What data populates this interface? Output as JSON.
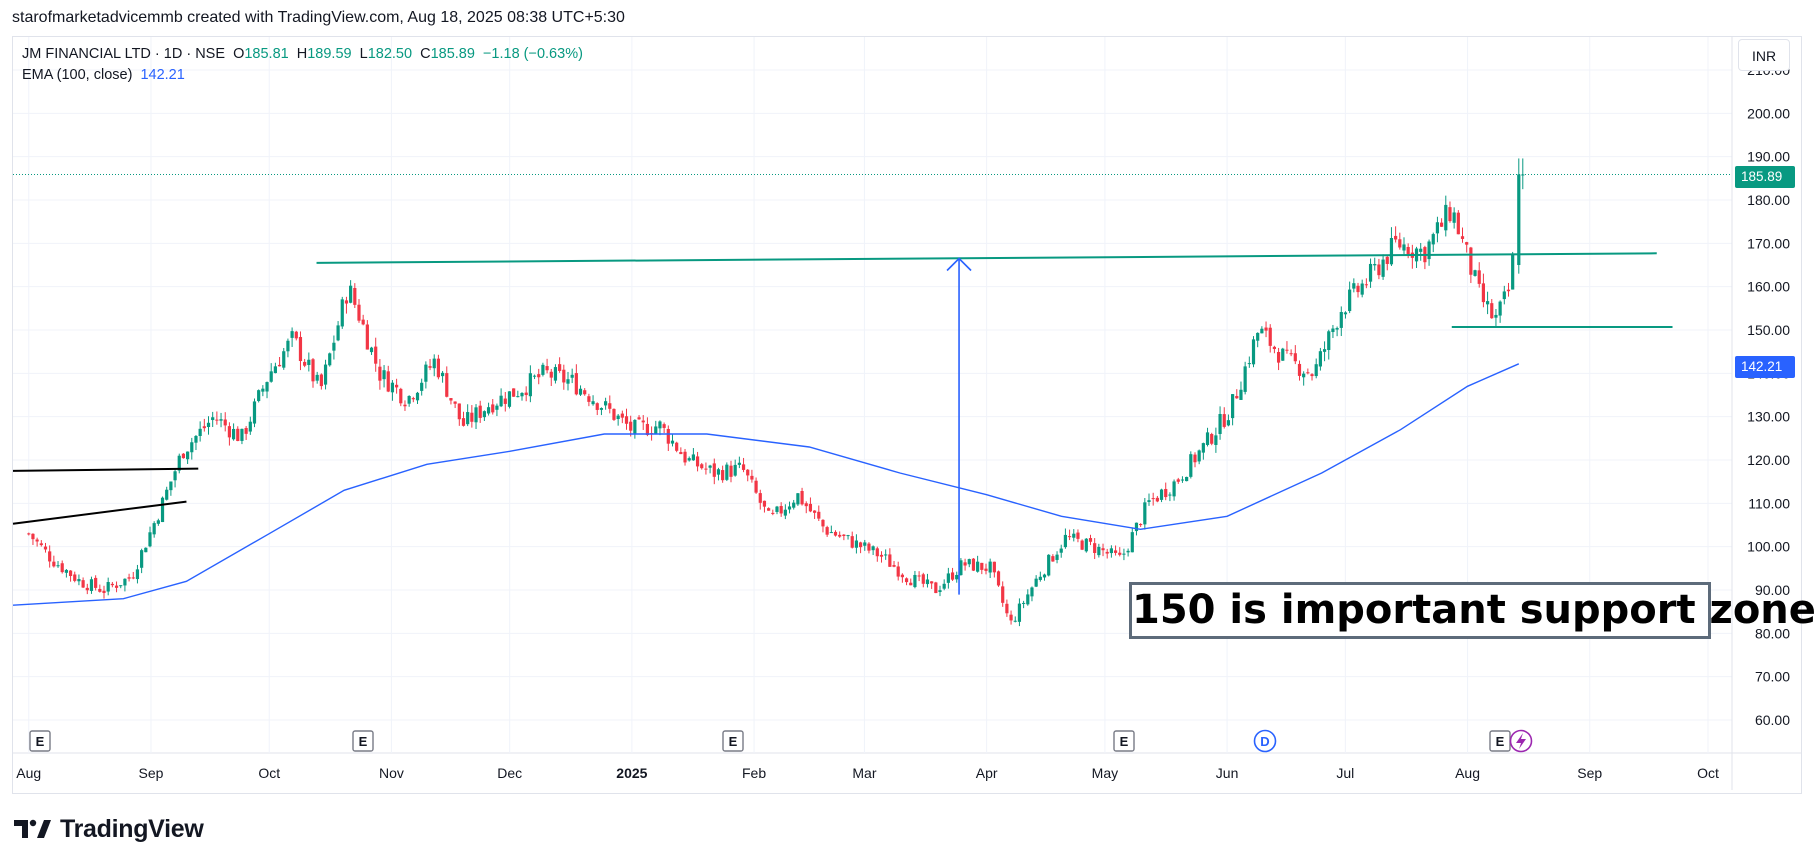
{
  "header": {
    "attribution": "starofmarketadvicemmb created with TradingView.com, Aug 18, 2025 08:38 UTC+5:30"
  },
  "legend": {
    "symbol": "JM FINANCIAL LTD · 1D · NSE",
    "o_label": "O",
    "o_value": "185.81",
    "h_label": "H",
    "h_value": "189.59",
    "l_label": "L",
    "l_value": "182.50",
    "c_label": "C",
    "c_value": "185.89",
    "change": "−1.18 (−0.63%)",
    "ema_label": "EMA (100, close)",
    "ema_value": "142.21"
  },
  "currency_button": "INR",
  "annotation_text": "150 is important support zone",
  "brand": {
    "name": "TradingView"
  },
  "price_tags": {
    "last_price": "185.89",
    "ema_price": "142.21"
  },
  "colors": {
    "up": "#089981",
    "down": "#f23645",
    "ema": "#2962ff",
    "trendline": "#089981",
    "drawing": "#000000"
  },
  "chart_data": {
    "type": "candlestick",
    "title": "JM FINANCIAL LTD · 1D · NSE",
    "y_axis_ticks": [
      "60.00",
      "70.00",
      "80.00",
      "90.00",
      "100.00",
      "110.00",
      "120.00",
      "130.00",
      "140.00",
      "150.00",
      "160.00",
      "170.00",
      "180.00",
      "190.00",
      "200.00",
      "210.00"
    ],
    "ylim": [
      55,
      213
    ],
    "x_axis_ticks": [
      "Aug",
      "Sep",
      "Oct",
      "Nov",
      "Dec",
      "2025",
      "Feb",
      "Mar",
      "Apr",
      "May",
      "Jun",
      "Jul",
      "Aug",
      "Sep",
      "Oct"
    ],
    "grid": true,
    "series": [
      {
        "name": "JM FINANCIAL LTD",
        "kind": "ohlc",
        "approx_close_path": [
          [
            "2024-08-01",
            103
          ],
          [
            "2024-08-07",
            97
          ],
          [
            "2024-08-14",
            92
          ],
          [
            "2024-08-20",
            90
          ],
          [
            "2024-08-27",
            93
          ],
          [
            "2024-09-03",
            108
          ],
          [
            "2024-09-09",
            122
          ],
          [
            "2024-09-17",
            130
          ],
          [
            "2024-09-24",
            125
          ],
          [
            "2024-10-01",
            140
          ],
          [
            "2024-10-07",
            148
          ],
          [
            "2024-10-14",
            136
          ],
          [
            "2024-10-21",
            160
          ],
          [
            "2024-10-24",
            153
          ],
          [
            "2024-10-29",
            140
          ],
          [
            "2024-11-05",
            134
          ],
          [
            "2024-11-12",
            143
          ],
          [
            "2024-11-19",
            128
          ],
          [
            "2024-11-26",
            133
          ],
          [
            "2024-12-03",
            136
          ],
          [
            "2024-12-10",
            140
          ],
          [
            "2024-12-17",
            138
          ],
          [
            "2024-12-24",
            133
          ],
          [
            "2025-01-01",
            127
          ],
          [
            "2025-01-08",
            128
          ],
          [
            "2025-01-15",
            120
          ],
          [
            "2025-01-22",
            117
          ],
          [
            "2025-01-29",
            118
          ],
          [
            "2025-02-05",
            106
          ],
          [
            "2025-02-12",
            112
          ],
          [
            "2025-02-19",
            104
          ],
          [
            "2025-02-26",
            101
          ],
          [
            "2025-03-05",
            98
          ],
          [
            "2025-03-12",
            93
          ],
          [
            "2025-03-19",
            90
          ],
          [
            "2025-03-26",
            96
          ],
          [
            "2025-04-02",
            95
          ],
          [
            "2025-04-07",
            82
          ],
          [
            "2025-04-14",
            93
          ],
          [
            "2025-04-21",
            102
          ],
          [
            "2025-04-28",
            100
          ],
          [
            "2025-05-05",
            97
          ],
          [
            "2025-05-12",
            110
          ],
          [
            "2025-05-19",
            115
          ],
          [
            "2025-05-26",
            123
          ],
          [
            "2025-06-02",
            132
          ],
          [
            "2025-06-09",
            150
          ],
          [
            "2025-06-16",
            143
          ],
          [
            "2025-06-23",
            140
          ],
          [
            "2025-06-30",
            155
          ],
          [
            "2025-07-07",
            162
          ],
          [
            "2025-07-14",
            170
          ],
          [
            "2025-07-21",
            168
          ],
          [
            "2025-07-28",
            178
          ],
          [
            "2025-08-04",
            158
          ],
          [
            "2025-08-08",
            152
          ],
          [
            "2025-08-12",
            160
          ],
          [
            "2025-08-14",
            185.89
          ]
        ],
        "last": {
          "open": 185.81,
          "high": 189.59,
          "low": 182.5,
          "close": 185.89
        }
      },
      {
        "name": "EMA (100, close)",
        "kind": "line",
        "approx_path": [
          [
            "2024-07-28",
            86.5
          ],
          [
            "2024-08-25",
            88
          ],
          [
            "2024-09-10",
            92
          ],
          [
            "2024-10-01",
            103
          ],
          [
            "2024-10-20",
            113
          ],
          [
            "2024-11-10",
            119
          ],
          [
            "2024-12-01",
            122
          ],
          [
            "2024-12-25",
            126
          ],
          [
            "2025-01-20",
            126
          ],
          [
            "2025-02-15",
            123
          ],
          [
            "2025-03-10",
            117
          ],
          [
            "2025-04-01",
            112
          ],
          [
            "2025-04-20",
            107
          ],
          [
            "2025-05-10",
            104
          ],
          [
            "2025-06-01",
            107
          ],
          [
            "2025-06-25",
            117
          ],
          [
            "2025-07-15",
            127
          ],
          [
            "2025-08-01",
            137
          ],
          [
            "2025-08-14",
            142.21
          ]
        ]
      }
    ],
    "drawings": [
      {
        "kind": "trendline",
        "color": "green",
        "from": [
          "2024-10-13",
          165.5
        ],
        "to": [
          "2025-09-18",
          167.7
        ]
      },
      {
        "kind": "horizontal",
        "color": "green",
        "from": [
          "2025-07-28",
          150.7
        ],
        "to": [
          "2025-09-22",
          150.7
        ]
      },
      {
        "kind": "trendline",
        "color": "black",
        "from": [
          "2024-07-28",
          117.5
        ],
        "to": [
          "2024-09-13",
          118
        ]
      },
      {
        "kind": "trendline",
        "color": "black",
        "from": [
          "2024-07-28",
          105.3
        ],
        "to": [
          "2024-09-10",
          110.4
        ]
      },
      {
        "kind": "arrow",
        "color": "blue",
        "from": [
          "2025-03-25",
          97
        ],
        "to": [
          "2025-03-25",
          166.5
        ]
      }
    ],
    "event_markers": [
      "E",
      "E",
      "E",
      "E",
      "D",
      "E"
    ]
  }
}
